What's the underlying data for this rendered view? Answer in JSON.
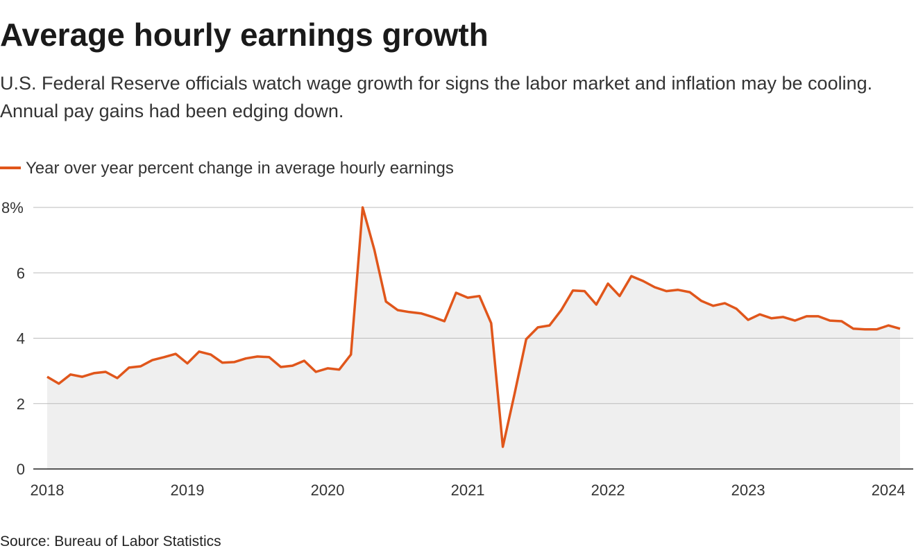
{
  "chart_data": {
    "type": "line",
    "title": "Average hourly earnings growth",
    "subtitle": "U.S. Federal Reserve officials watch wage growth for signs the labor market and inflation may be cooling. Annual pay gains had been edging down.",
    "source": "Source: Bureau of Labor Statistics",
    "categories": [
      "2018",
      null,
      null,
      null,
      null,
      null,
      null,
      null,
      null,
      null,
      null,
      null,
      "2019",
      null,
      null,
      null,
      null,
      null,
      null,
      null,
      null,
      null,
      null,
      null,
      "2020",
      null,
      null,
      null,
      null,
      null,
      null,
      null,
      null,
      null,
      null,
      null,
      "2021",
      null,
      null,
      null,
      null,
      null,
      null,
      null,
      null,
      null,
      null,
      null,
      "2022",
      null,
      null,
      null,
      null,
      null,
      null,
      null,
      null,
      null,
      null,
      null,
      "2023",
      null,
      null,
      null,
      null,
      null,
      null,
      null,
      null,
      null,
      null,
      null,
      "2024",
      null
    ],
    "series": [
      {
        "name": "Year over year percent change in average hourly earnings",
        "color": "#e0561b",
        "values": [
          2.82,
          2.61,
          2.89,
          2.82,
          2.93,
          2.97,
          2.78,
          3.1,
          3.14,
          3.33,
          3.42,
          3.52,
          3.23,
          3.59,
          3.5,
          3.25,
          3.27,
          3.38,
          3.44,
          3.42,
          3.12,
          3.16,
          3.31,
          2.97,
          3.08,
          3.04,
          3.5,
          8.0,
          6.71,
          5.12,
          4.86,
          4.8,
          4.76,
          4.65,
          4.52,
          5.39,
          5.24,
          5.29,
          4.46,
          0.68,
          2.29,
          3.97,
          4.33,
          4.39,
          4.86,
          5.46,
          5.44,
          5.03,
          5.67,
          5.29,
          5.9,
          5.75,
          5.56,
          5.44,
          5.48,
          5.41,
          5.14,
          4.99,
          5.07,
          4.9,
          4.56,
          4.73,
          4.61,
          4.65,
          4.54,
          4.67,
          4.67,
          4.54,
          4.52,
          4.29,
          4.27,
          4.27,
          4.39,
          4.29
        ]
      }
    ],
    "area_color": "#efefef",
    "ylim": [
      0,
      8
    ],
    "yticks": [
      0,
      2,
      4,
      6,
      {
        "value": 8,
        "label": "8%"
      }
    ],
    "grid": true
  }
}
